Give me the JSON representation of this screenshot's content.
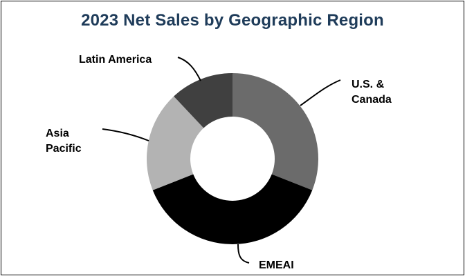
{
  "chart_data": {
    "type": "pie",
    "style": "donut",
    "title": "2023 Net Sales by Geographic Region",
    "categories": [
      "U.S. & Canada",
      "EMEAI",
      "Asia Pacific",
      "Latin America"
    ],
    "values": [
      31,
      38,
      19,
      12
    ],
    "legend": "none",
    "labels": {
      "us_canada": [
        "U.S. &",
        "Canada"
      ],
      "emeai": [
        "EMEAI"
      ],
      "asia_pacific": [
        "Asia",
        "Pacific"
      ],
      "latin_america": [
        "Latin America"
      ]
    }
  },
  "colors": {
    "title": "#1f3c5a",
    "us_canada": "#6b6b6b",
    "emeai": "#000000",
    "asia_pacific": "#b3b3b3",
    "latin_america": "#404040",
    "leader": "#000000"
  }
}
